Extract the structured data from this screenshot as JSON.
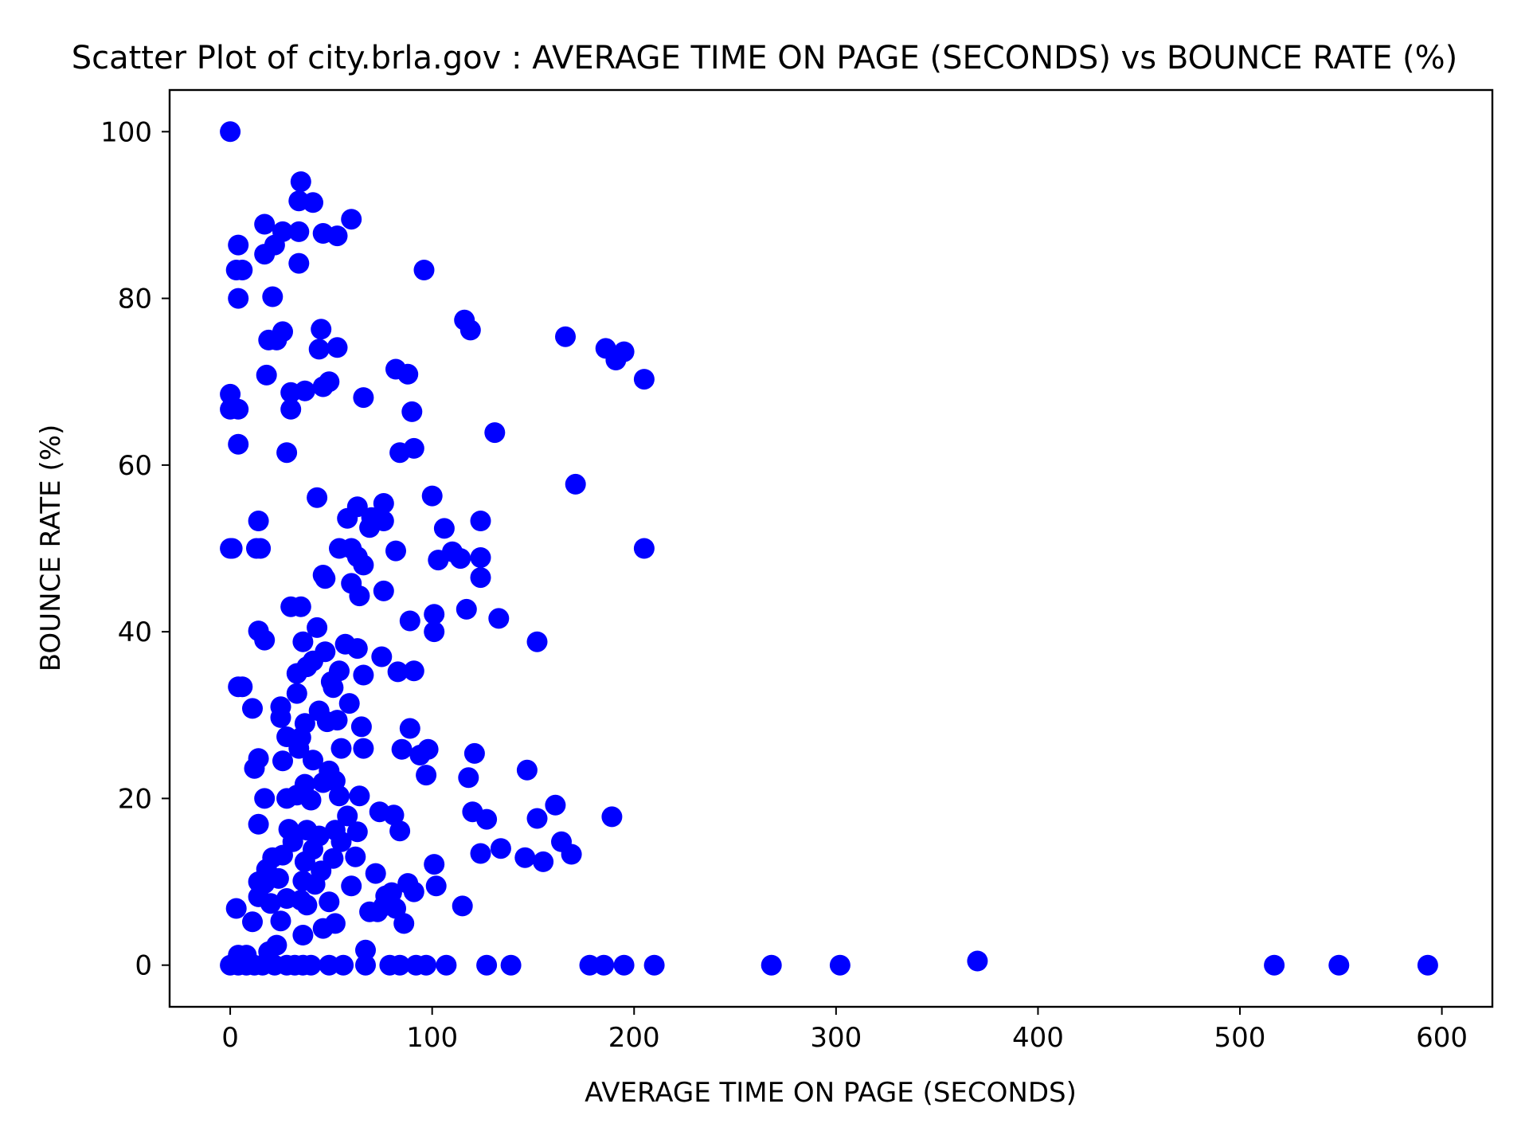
{
  "chart_data": {
    "type": "scatter",
    "title": "Scatter Plot of city.brla.gov : AVERAGE TIME ON PAGE (SECONDS) vs BOUNCE RATE (%)",
    "xlabel": "AVERAGE TIME ON PAGE (SECONDS)",
    "ylabel": "BOUNCE RATE (%)",
    "xlim": [
      -30,
      625
    ],
    "ylim": [
      -5,
      105
    ],
    "xticks": [
      0,
      100,
      200,
      300,
      400,
      500,
      600
    ],
    "yticks": [
      0,
      20,
      40,
      60,
      80,
      100
    ],
    "grid": false,
    "marker_color": "#0000ff",
    "points": [
      [
        0,
        100
      ],
      [
        35,
        94
      ],
      [
        34,
        91.7
      ],
      [
        41,
        91.5
      ],
      [
        60,
        89.5
      ],
      [
        17,
        88.9
      ],
      [
        26,
        88
      ],
      [
        34,
        88
      ],
      [
        46,
        87.8
      ],
      [
        53,
        87.5
      ],
      [
        4,
        86.4
      ],
      [
        22,
        86.4
      ],
      [
        17,
        85.3
      ],
      [
        34,
        84.2
      ],
      [
        3,
        83.4
      ],
      [
        6,
        83.4
      ],
      [
        96,
        83.4
      ],
      [
        21,
        80.2
      ],
      [
        4,
        80
      ],
      [
        116,
        77.4
      ],
      [
        119,
        76.2
      ],
      [
        45,
        76.3
      ],
      [
        26,
        76
      ],
      [
        166,
        75.4
      ],
      [
        19,
        75
      ],
      [
        23,
        75
      ],
      [
        186,
        74
      ],
      [
        195,
        73.6
      ],
      [
        44,
        73.9
      ],
      [
        53,
        74.1
      ],
      [
        191,
        72.6
      ],
      [
        18,
        70.8
      ],
      [
        82,
        71.5
      ],
      [
        88,
        70.9
      ],
      [
        205,
        70.3
      ],
      [
        49,
        70
      ],
      [
        46,
        69.4
      ],
      [
        37,
        68.9
      ],
      [
        30,
        68.7
      ],
      [
        0,
        68.5
      ],
      [
        66,
        68.1
      ],
      [
        0,
        66.7
      ],
      [
        4,
        66.7
      ],
      [
        30,
        66.7
      ],
      [
        90,
        66.4
      ],
      [
        131,
        63.9
      ],
      [
        4,
        62.5
      ],
      [
        28,
        61.5
      ],
      [
        84,
        61.5
      ],
      [
        91,
        62
      ],
      [
        171,
        57.7
      ],
      [
        43,
        56.1
      ],
      [
        100,
        56.3
      ],
      [
        76,
        55.4
      ],
      [
        63,
        55
      ],
      [
        58,
        53.6
      ],
      [
        70,
        53.7
      ],
      [
        76,
        53.3
      ],
      [
        14,
        53.3
      ],
      [
        124,
        53.3
      ],
      [
        106,
        52.4
      ],
      [
        69,
        52.5
      ],
      [
        0,
        50
      ],
      [
        1,
        50
      ],
      [
        13,
        50
      ],
      [
        15,
        50
      ],
      [
        54,
        50
      ],
      [
        60,
        50
      ],
      [
        82,
        49.7
      ],
      [
        205,
        50
      ],
      [
        110,
        49.6
      ],
      [
        63,
        49
      ],
      [
        114,
        48.8
      ],
      [
        124,
        48.9
      ],
      [
        66,
        48
      ],
      [
        103,
        48.6
      ],
      [
        46,
        46.8
      ],
      [
        47,
        46.4
      ],
      [
        124,
        46.5
      ],
      [
        60,
        45.8
      ],
      [
        76,
        44.9
      ],
      [
        64,
        44.3
      ],
      [
        30,
        43
      ],
      [
        35,
        43
      ],
      [
        117,
        42.7
      ],
      [
        101,
        42.1
      ],
      [
        89,
        41.3
      ],
      [
        133,
        41.6
      ],
      [
        14,
        40.1
      ],
      [
        43,
        40.5
      ],
      [
        101,
        40
      ],
      [
        17,
        39
      ],
      [
        36,
        38.8
      ],
      [
        57,
        38.5
      ],
      [
        63,
        38
      ],
      [
        152,
        38.8
      ],
      [
        47,
        37.6
      ],
      [
        75,
        37
      ],
      [
        41,
        36.5
      ],
      [
        33,
        35
      ],
      [
        38,
        35.8
      ],
      [
        54,
        35.3
      ],
      [
        66,
        34.8
      ],
      [
        83,
        35.2
      ],
      [
        91,
        35.3
      ],
      [
        50,
        34
      ],
      [
        51,
        33.3
      ],
      [
        4,
        33.4
      ],
      [
        6,
        33.4
      ],
      [
        33,
        32.6
      ],
      [
        59,
        31.4
      ],
      [
        11,
        30.8
      ],
      [
        25,
        31
      ],
      [
        44,
        30.5
      ],
      [
        53,
        29.4
      ],
      [
        48,
        29.2
      ],
      [
        25,
        29.7
      ],
      [
        37,
        29
      ],
      [
        65,
        28.6
      ],
      [
        89,
        28.4
      ],
      [
        28,
        27.4
      ],
      [
        35,
        27.3
      ],
      [
        55,
        26
      ],
      [
        34,
        26
      ],
      [
        41,
        24.6
      ],
      [
        66,
        26
      ],
      [
        85,
        25.9
      ],
      [
        98,
        25.9
      ],
      [
        94,
        25.2
      ],
      [
        121,
        25.4
      ],
      [
        14,
        24.8
      ],
      [
        26,
        24.5
      ],
      [
        12,
        23.6
      ],
      [
        49,
        23.3
      ],
      [
        147,
        23.4
      ],
      [
        52,
        22.1
      ],
      [
        97,
        22.8
      ],
      [
        118,
        22.5
      ],
      [
        46,
        21.9
      ],
      [
        37,
        21.7
      ],
      [
        17,
        20
      ],
      [
        28,
        20
      ],
      [
        33,
        20.4
      ],
      [
        40,
        19.8
      ],
      [
        54,
        20.3
      ],
      [
        64,
        20.3
      ],
      [
        161,
        19.2
      ],
      [
        120,
        18.4
      ],
      [
        74,
        18.4
      ],
      [
        81,
        18
      ],
      [
        58,
        17.9
      ],
      [
        189,
        17.8
      ],
      [
        152,
        17.6
      ],
      [
        127,
        17.5
      ],
      [
        14,
        16.9
      ],
      [
        29,
        16.3
      ],
      [
        38,
        16.2
      ],
      [
        52,
        16.2
      ],
      [
        84,
        16.1
      ],
      [
        63,
        16
      ],
      [
        44,
        15.5
      ],
      [
        31,
        14.8
      ],
      [
        55,
        14.8
      ],
      [
        164,
        14.8
      ],
      [
        41,
        13.9
      ],
      [
        124,
        13.4
      ],
      [
        134,
        14
      ],
      [
        169,
        13.3
      ],
      [
        26,
        13.2
      ],
      [
        21,
        12.9
      ],
      [
        37,
        12.4
      ],
      [
        51,
        12.8
      ],
      [
        62,
        13
      ],
      [
        18,
        11.5
      ],
      [
        146,
        12.9
      ],
      [
        101,
        12.1
      ],
      [
        155,
        12.4
      ],
      [
        45,
        11.3
      ],
      [
        72,
        11
      ],
      [
        24,
        10.4
      ],
      [
        36,
        10.1
      ],
      [
        14,
        10
      ],
      [
        17,
        9.8
      ],
      [
        60,
        9.5
      ],
      [
        42,
        9.7
      ],
      [
        88,
        9.8
      ],
      [
        102,
        9.5
      ],
      [
        91,
        8.8
      ],
      [
        80,
        8.7
      ],
      [
        14,
        8.2
      ],
      [
        28,
        8
      ],
      [
        35,
        7.8
      ],
      [
        20,
        7.4
      ],
      [
        49,
        7.6
      ],
      [
        77,
        8.3
      ],
      [
        38,
        7.2
      ],
      [
        76,
        7.1
      ],
      [
        115,
        7.1
      ],
      [
        82,
        6.8
      ],
      [
        3,
        6.8
      ],
      [
        69,
        6.4
      ],
      [
        73,
        6.4
      ],
      [
        25,
        5.3
      ],
      [
        11,
        5.2
      ],
      [
        52,
        5
      ],
      [
        86,
        5
      ],
      [
        46,
        4.4
      ],
      [
        36,
        3.6
      ],
      [
        23,
        2.4
      ],
      [
        67,
        1.8
      ],
      [
        19,
        1.6
      ],
      [
        4,
        1.2
      ],
      [
        8,
        1.2
      ],
      [
        0,
        0
      ],
      [
        4,
        0
      ],
      [
        8,
        0
      ],
      [
        12,
        0
      ],
      [
        16,
        0
      ],
      [
        22,
        0
      ],
      [
        28,
        0
      ],
      [
        32,
        0
      ],
      [
        36,
        0
      ],
      [
        40,
        0
      ],
      [
        49,
        0
      ],
      [
        56,
        0
      ],
      [
        67,
        0
      ],
      [
        79,
        0
      ],
      [
        84,
        0
      ],
      [
        92,
        0
      ],
      [
        97,
        0
      ],
      [
        107,
        0
      ],
      [
        127,
        0
      ],
      [
        139,
        0
      ],
      [
        178,
        0
      ],
      [
        185,
        0
      ],
      [
        195,
        0
      ],
      [
        210,
        0
      ],
      [
        268,
        0
      ],
      [
        302,
        0
      ],
      [
        370,
        0.5
      ],
      [
        517,
        0
      ],
      [
        549,
        0
      ],
      [
        593,
        0
      ]
    ]
  }
}
